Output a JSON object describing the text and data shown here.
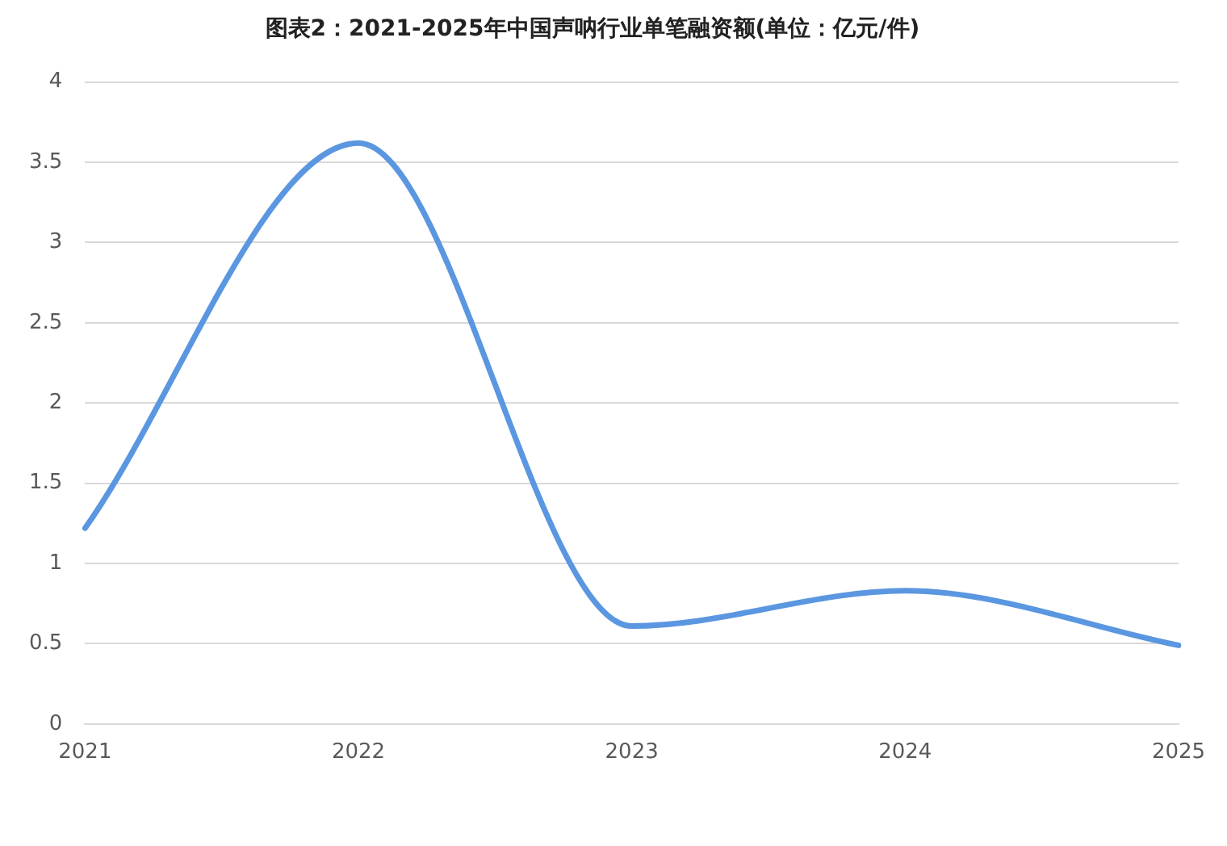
{
  "chart_data": {
    "type": "line",
    "title": "图表2：2021-2025年中国声呐行业单笔融资额(单位：亿元/件)",
    "categories": [
      "2021",
      "2022",
      "2023",
      "2024",
      "2025"
    ],
    "series": [
      {
        "color": "#5b97e0",
        "values": [
          1.22,
          3.62,
          0.61,
          0.83,
          0.49
        ]
      }
    ],
    "ylim": [
      0,
      4
    ],
    "yticks": [
      0,
      0.5,
      1,
      1.5,
      2,
      2.5,
      3,
      3.5,
      4
    ],
    "grid": "y",
    "legend": false,
    "marker": "none",
    "line_style": "solid"
  }
}
